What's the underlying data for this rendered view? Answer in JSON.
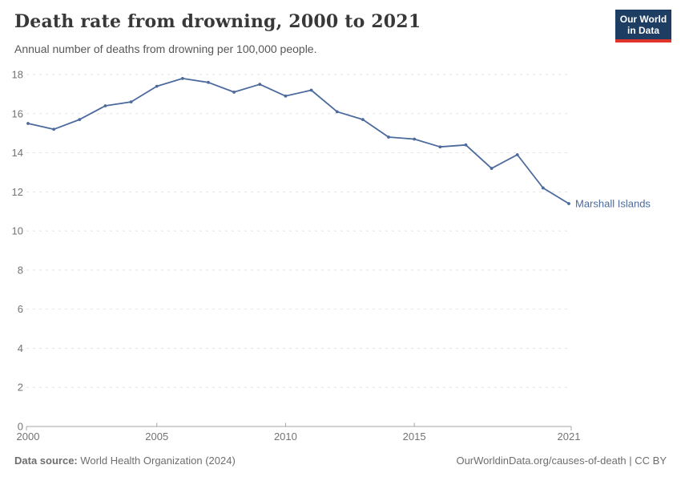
{
  "header": {
    "title": "Death rate from drowning, 2000 to 2021",
    "subtitle": "Annual number of deaths from drowning per 100,000 people.",
    "logo": {
      "line1": "Our World",
      "line2": "in Data",
      "bg_color": "#1d3d63",
      "stripe_color": "#e0332a"
    }
  },
  "chart_data": {
    "type": "line",
    "title": "Death rate from drowning, 2000 to 2021",
    "xlabel": "",
    "ylabel": "",
    "xlim": [
      2000,
      2021
    ],
    "ylim": [
      0,
      18
    ],
    "x_ticks": [
      2000,
      2005,
      2010,
      2015,
      2021
    ],
    "y_ticks": [
      0,
      2,
      4,
      6,
      8,
      10,
      12,
      14,
      16,
      18
    ],
    "grid": "horizontal-dashed",
    "legend_position": "end-of-line-label",
    "x": [
      2000,
      2001,
      2002,
      2003,
      2004,
      2005,
      2006,
      2007,
      2008,
      2009,
      2010,
      2011,
      2012,
      2013,
      2014,
      2015,
      2016,
      2017,
      2018,
      2019,
      2020,
      2021
    ],
    "series": [
      {
        "name": "Marshall Islands",
        "color": "#4C6A9C",
        "values": [
          15.5,
          15.2,
          15.7,
          16.4,
          16.6,
          17.4,
          17.8,
          17.6,
          17.1,
          17.5,
          16.9,
          17.2,
          16.1,
          15.7,
          14.8,
          14.7,
          14.3,
          14.4,
          13.2,
          13.9,
          12.2,
          11.4
        ]
      }
    ],
    "colors": {
      "gridline": "#e2e2e2",
      "axis_line": "#a5a5a5",
      "tick_label": "#737373"
    }
  },
  "footer": {
    "source_label": "Data source:",
    "source_text": "World Health Organization (2024)",
    "credit": "OurWorldinData.org/causes-of-death | CC BY"
  }
}
